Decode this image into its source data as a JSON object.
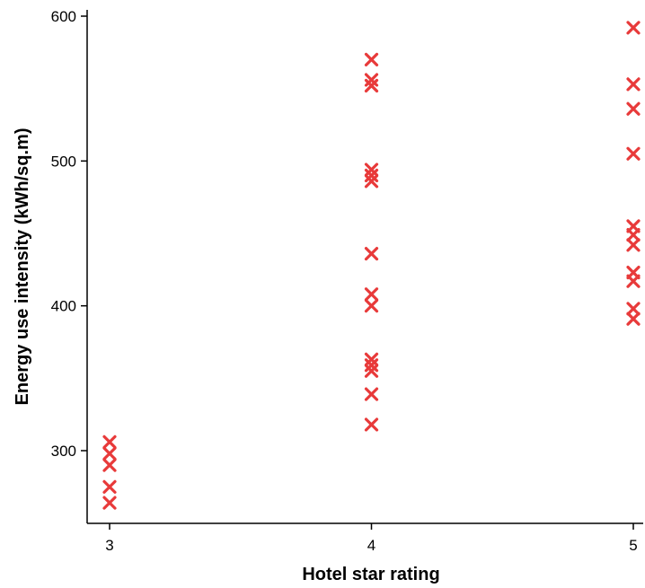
{
  "chart_data": {
    "type": "scatter",
    "xlabel": "Hotel star rating",
    "ylabel": "Energy use intensity (kWh/sq.m)",
    "x_ticks": [
      3,
      4,
      5
    ],
    "y_ticks": [
      300,
      400,
      500,
      600
    ],
    "xlim": [
      3,
      5
    ],
    "ylim": [
      251,
      610
    ],
    "marker": "x",
    "marker_color": "#e83a3a",
    "axis_color": "#000000",
    "grid": false,
    "series": [
      {
        "points": [
          {
            "x": 3,
            "y": 306
          },
          {
            "x": 3,
            "y": 298
          },
          {
            "x": 3,
            "y": 290
          },
          {
            "x": 3,
            "y": 275
          },
          {
            "x": 3,
            "y": 264
          },
          {
            "x": 4,
            "y": 570
          },
          {
            "x": 4,
            "y": 556
          },
          {
            "x": 4,
            "y": 552
          },
          {
            "x": 4,
            "y": 494
          },
          {
            "x": 4,
            "y": 490
          },
          {
            "x": 4,
            "y": 486
          },
          {
            "x": 4,
            "y": 436
          },
          {
            "x": 4,
            "y": 408
          },
          {
            "x": 4,
            "y": 400
          },
          {
            "x": 4,
            "y": 363
          },
          {
            "x": 4,
            "y": 359
          },
          {
            "x": 4,
            "y": 355
          },
          {
            "x": 4,
            "y": 339
          },
          {
            "x": 4,
            "y": 318
          },
          {
            "x": 5,
            "y": 592
          },
          {
            "x": 5,
            "y": 553
          },
          {
            "x": 5,
            "y": 536
          },
          {
            "x": 5,
            "y": 505
          },
          {
            "x": 5,
            "y": 455
          },
          {
            "x": 5,
            "y": 449
          },
          {
            "x": 5,
            "y": 442
          },
          {
            "x": 5,
            "y": 423
          },
          {
            "x": 5,
            "y": 417
          },
          {
            "x": 5,
            "y": 398
          },
          {
            "x": 5,
            "y": 391
          }
        ]
      }
    ]
  }
}
